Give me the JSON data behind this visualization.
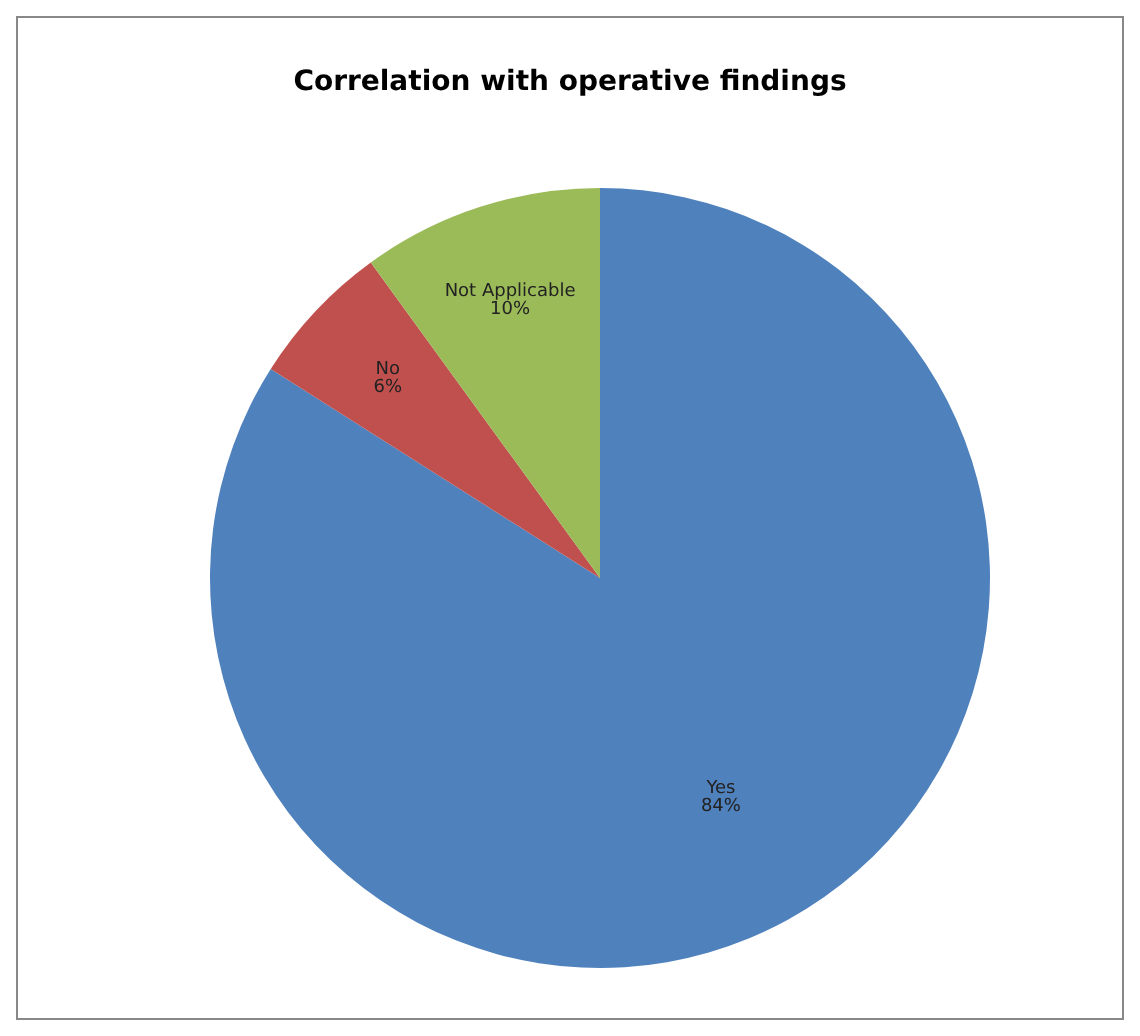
{
  "chart_data": {
    "type": "pie",
    "title": "Correlation with operative findings",
    "categories": [
      "Yes",
      "No",
      "Not Applicable"
    ],
    "values": [
      84,
      6,
      10
    ],
    "colors": [
      "#4f81bd",
      "#c0504d",
      "#9bbb59"
    ],
    "value_labels": [
      "84%",
      "6%",
      "10%"
    ],
    "legend": false
  }
}
